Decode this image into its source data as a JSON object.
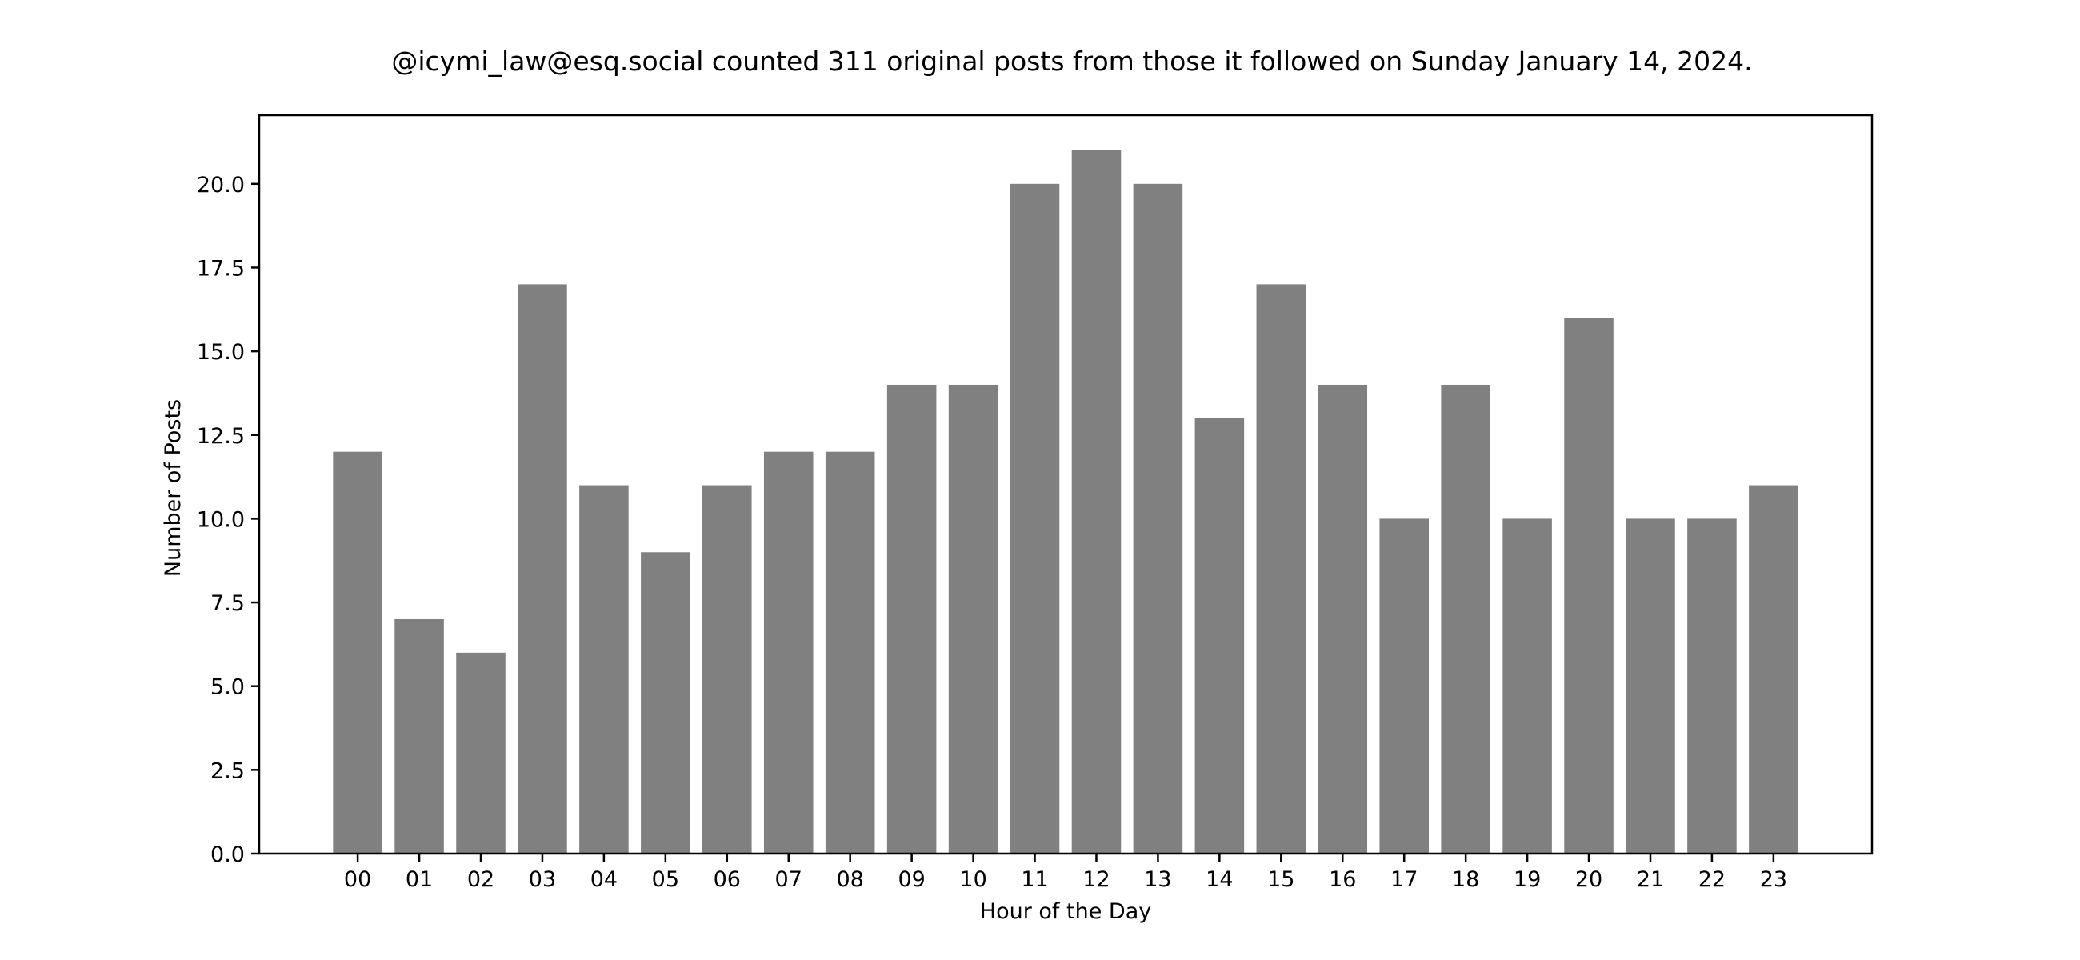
{
  "chart_data": {
    "type": "bar",
    "title": "@icymi_law@esq.social counted 311 original posts from those it followed on Sunday January 14, 2024.",
    "xlabel": "Hour of the Day",
    "ylabel": "Number of Posts",
    "categories": [
      "00",
      "01",
      "02",
      "03",
      "04",
      "05",
      "06",
      "07",
      "08",
      "09",
      "10",
      "11",
      "12",
      "13",
      "14",
      "15",
      "16",
      "17",
      "18",
      "19",
      "20",
      "21",
      "22",
      "23"
    ],
    "values": [
      12,
      7,
      6,
      17,
      11,
      9,
      11,
      12,
      12,
      14,
      14,
      20,
      21,
      20,
      13,
      17,
      14,
      10,
      14,
      10,
      16,
      10,
      10,
      11
    ],
    "yticks": [
      "0.0",
      "2.5",
      "5.0",
      "7.5",
      "10.0",
      "12.5",
      "15.0",
      "17.5",
      "20.0"
    ],
    "ylim": [
      0,
      22.05
    ],
    "xlim": [
      -1.6,
      24.6
    ],
    "grid": false,
    "legend": null,
    "bar_color": "#808080",
    "bar_width": 0.8
  }
}
